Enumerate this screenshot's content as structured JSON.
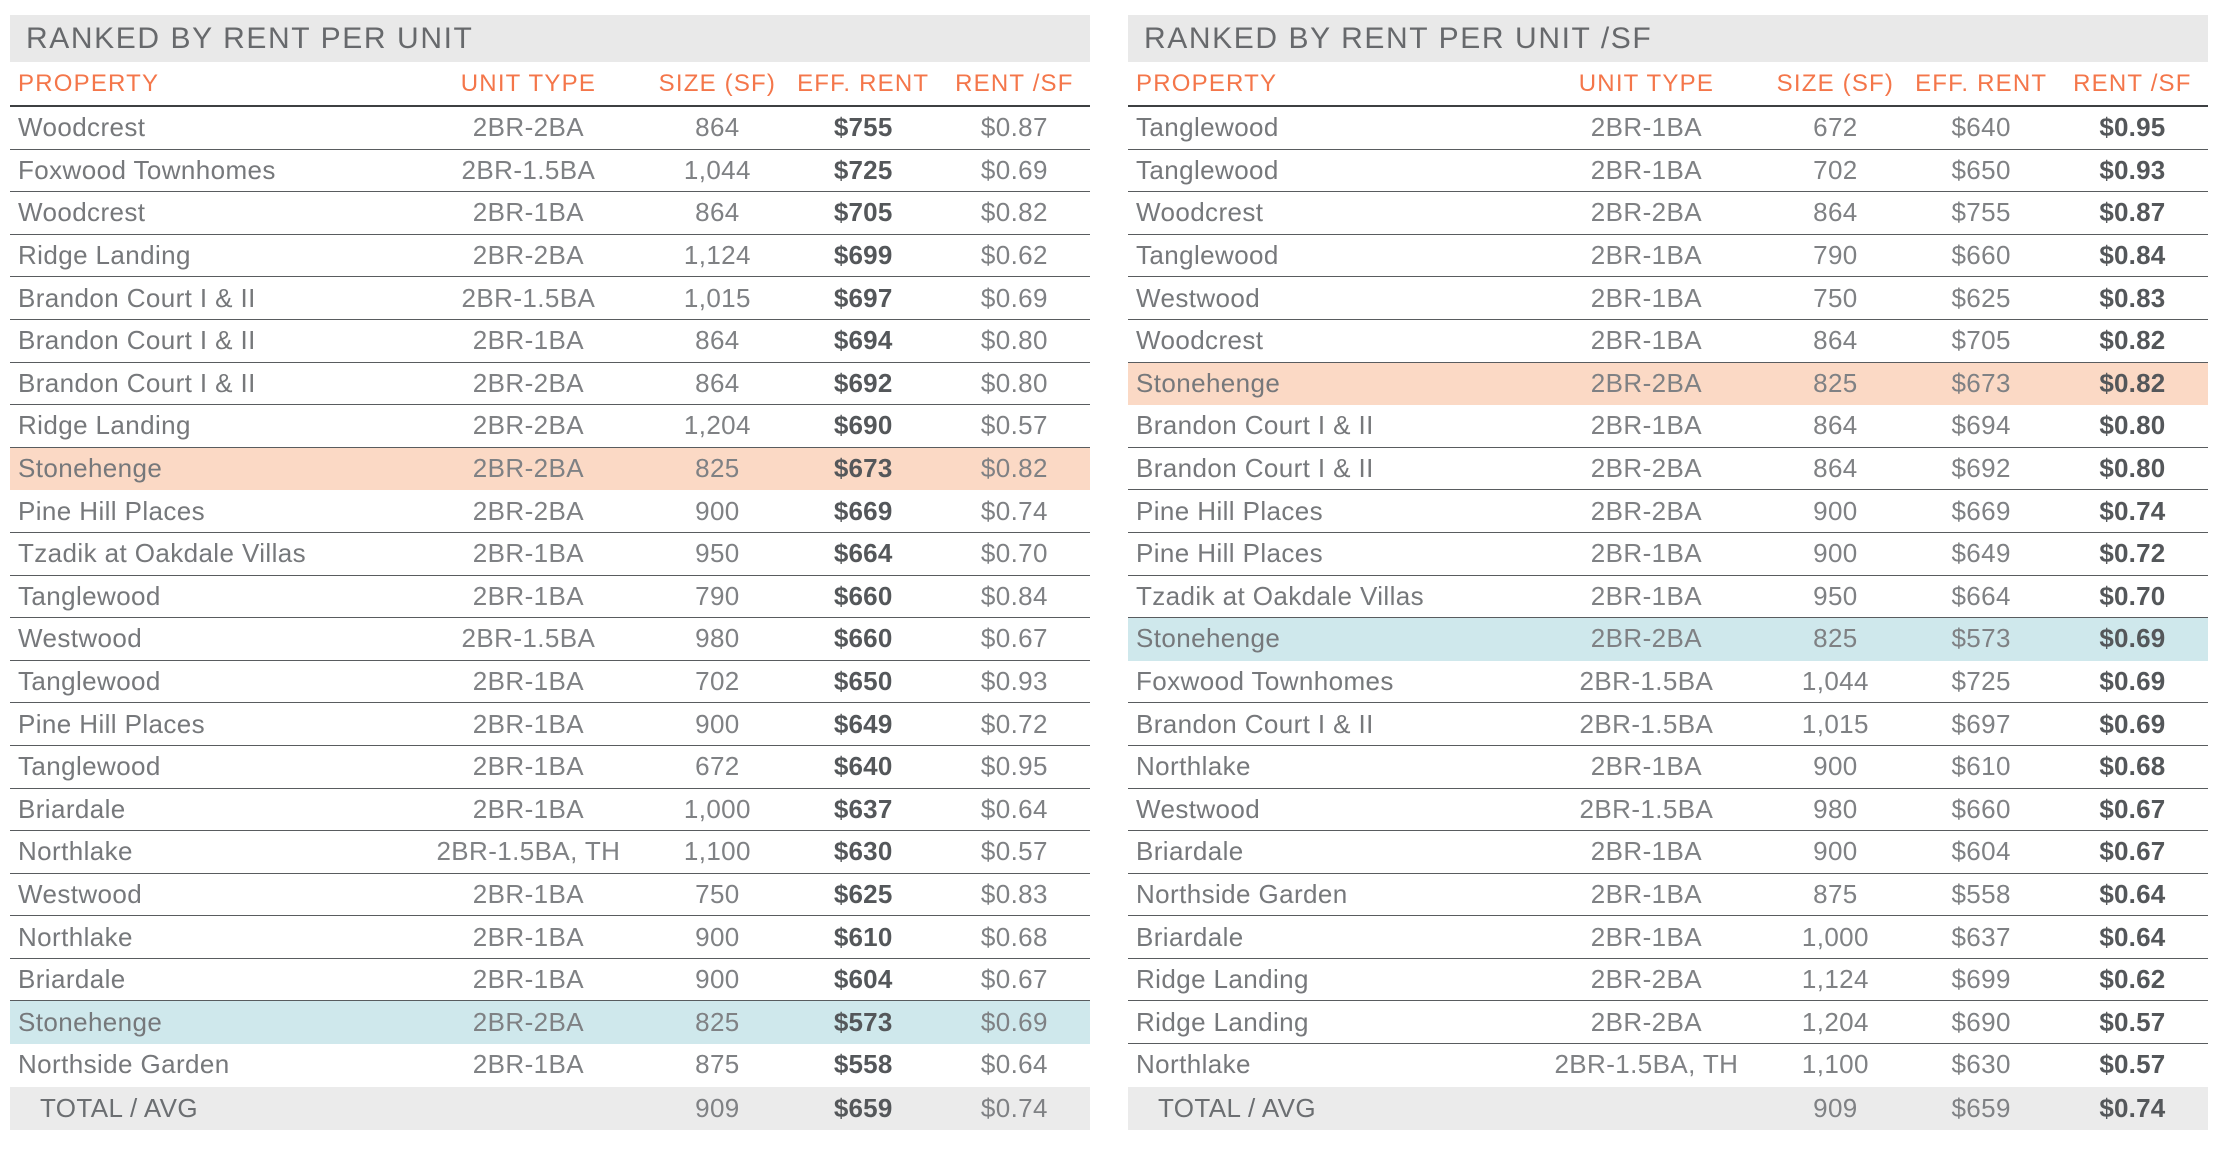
{
  "colors": {
    "accent_orange": "#F4764A",
    "highlight_salmon": "#FBD9C5",
    "highlight_blue": "#CFE8EC",
    "title_bar_bg": "#E9E9E9",
    "total_row_bg": "#EBEBEB"
  },
  "tables": [
    {
      "title": "RANKED BY RENT PER UNIT",
      "bold_column": "eff_rent",
      "columns": [
        "PROPERTY",
        "UNIT TYPE",
        "SIZE (SF)",
        "EFF. RENT",
        "RENT /SF"
      ],
      "rows": [
        {
          "property": "Woodcrest",
          "unit_type": "2BR-2BA",
          "size": "864",
          "eff_rent": "$755",
          "rent_sf": "$0.87",
          "highlight": ""
        },
        {
          "property": "Foxwood Townhomes",
          "unit_type": "2BR-1.5BA",
          "size": "1,044",
          "eff_rent": "$725",
          "rent_sf": "$0.69",
          "highlight": ""
        },
        {
          "property": "Woodcrest",
          "unit_type": "2BR-1BA",
          "size": "864",
          "eff_rent": "$705",
          "rent_sf": "$0.82",
          "highlight": ""
        },
        {
          "property": "Ridge Landing",
          "unit_type": "2BR-2BA",
          "size": "1,124",
          "eff_rent": "$699",
          "rent_sf": "$0.62",
          "highlight": ""
        },
        {
          "property": "Brandon Court I & II",
          "unit_type": "2BR-1.5BA",
          "size": "1,015",
          "eff_rent": "$697",
          "rent_sf": "$0.69",
          "highlight": ""
        },
        {
          "property": "Brandon Court I & II",
          "unit_type": "2BR-1BA",
          "size": "864",
          "eff_rent": "$694",
          "rent_sf": "$0.80",
          "highlight": ""
        },
        {
          "property": "Brandon Court I & II",
          "unit_type": "2BR-2BA",
          "size": "864",
          "eff_rent": "$692",
          "rent_sf": "$0.80",
          "highlight": ""
        },
        {
          "property": "Ridge Landing",
          "unit_type": "2BR-2BA",
          "size": "1,204",
          "eff_rent": "$690",
          "rent_sf": "$0.57",
          "highlight": ""
        },
        {
          "property": "Stonehenge",
          "unit_type": "2BR-2BA",
          "size": "825",
          "eff_rent": "$673",
          "rent_sf": "$0.82",
          "highlight": "salmon"
        },
        {
          "property": "Pine Hill Places",
          "unit_type": "2BR-2BA",
          "size": "900",
          "eff_rent": "$669",
          "rent_sf": "$0.74",
          "highlight": ""
        },
        {
          "property": "Tzadik at Oakdale Villas",
          "unit_type": "2BR-1BA",
          "size": "950",
          "eff_rent": "$664",
          "rent_sf": "$0.70",
          "highlight": ""
        },
        {
          "property": "Tanglewood",
          "unit_type": "2BR-1BA",
          "size": "790",
          "eff_rent": "$660",
          "rent_sf": "$0.84",
          "highlight": ""
        },
        {
          "property": "Westwood",
          "unit_type": "2BR-1.5BA",
          "size": "980",
          "eff_rent": "$660",
          "rent_sf": "$0.67",
          "highlight": ""
        },
        {
          "property": "Tanglewood",
          "unit_type": "2BR-1BA",
          "size": "702",
          "eff_rent": "$650",
          "rent_sf": "$0.93",
          "highlight": ""
        },
        {
          "property": "Pine Hill Places",
          "unit_type": "2BR-1BA",
          "size": "900",
          "eff_rent": "$649",
          "rent_sf": "$0.72",
          "highlight": ""
        },
        {
          "property": "Tanglewood",
          "unit_type": "2BR-1BA",
          "size": "672",
          "eff_rent": "$640",
          "rent_sf": "$0.95",
          "highlight": ""
        },
        {
          "property": "Briardale",
          "unit_type": "2BR-1BA",
          "size": "1,000",
          "eff_rent": "$637",
          "rent_sf": "$0.64",
          "highlight": ""
        },
        {
          "property": "Northlake",
          "unit_type": "2BR-1.5BA, TH",
          "size": "1,100",
          "eff_rent": "$630",
          "rent_sf": "$0.57",
          "highlight": ""
        },
        {
          "property": "Westwood",
          "unit_type": "2BR-1BA",
          "size": "750",
          "eff_rent": "$625",
          "rent_sf": "$0.83",
          "highlight": ""
        },
        {
          "property": "Northlake",
          "unit_type": "2BR-1BA",
          "size": "900",
          "eff_rent": "$610",
          "rent_sf": "$0.68",
          "highlight": ""
        },
        {
          "property": "Briardale",
          "unit_type": "2BR-1BA",
          "size": "900",
          "eff_rent": "$604",
          "rent_sf": "$0.67",
          "highlight": ""
        },
        {
          "property": "Stonehenge",
          "unit_type": "2BR-2BA",
          "size": "825",
          "eff_rent": "$573",
          "rent_sf": "$0.69",
          "highlight": "blue"
        },
        {
          "property": "Northside Garden",
          "unit_type": "2BR-1BA",
          "size": "875",
          "eff_rent": "$558",
          "rent_sf": "$0.64",
          "highlight": ""
        }
      ],
      "total": {
        "label": "TOTAL / AVG",
        "unit_type": "",
        "size": "909",
        "eff_rent": "$659",
        "rent_sf": "$0.74"
      }
    },
    {
      "title": "RANKED BY RENT PER UNIT /SF",
      "bold_column": "rent_sf",
      "columns": [
        "PROPERTY",
        "UNIT TYPE",
        "SIZE (SF)",
        "EFF. RENT",
        "RENT /SF"
      ],
      "rows": [
        {
          "property": "Tanglewood",
          "unit_type": "2BR-1BA",
          "size": "672",
          "eff_rent": "$640",
          "rent_sf": "$0.95",
          "highlight": ""
        },
        {
          "property": "Tanglewood",
          "unit_type": "2BR-1BA",
          "size": "702",
          "eff_rent": "$650",
          "rent_sf": "$0.93",
          "highlight": ""
        },
        {
          "property": "Woodcrest",
          "unit_type": "2BR-2BA",
          "size": "864",
          "eff_rent": "$755",
          "rent_sf": "$0.87",
          "highlight": ""
        },
        {
          "property": "Tanglewood",
          "unit_type": "2BR-1BA",
          "size": "790",
          "eff_rent": "$660",
          "rent_sf": "$0.84",
          "highlight": ""
        },
        {
          "property": "Westwood",
          "unit_type": "2BR-1BA",
          "size": "750",
          "eff_rent": "$625",
          "rent_sf": "$0.83",
          "highlight": ""
        },
        {
          "property": "Woodcrest",
          "unit_type": "2BR-1BA",
          "size": "864",
          "eff_rent": "$705",
          "rent_sf": "$0.82",
          "highlight": ""
        },
        {
          "property": "Stonehenge",
          "unit_type": "2BR-2BA",
          "size": "825",
          "eff_rent": "$673",
          "rent_sf": "$0.82",
          "highlight": "salmon"
        },
        {
          "property": "Brandon Court I & II",
          "unit_type": "2BR-1BA",
          "size": "864",
          "eff_rent": "$694",
          "rent_sf": "$0.80",
          "highlight": ""
        },
        {
          "property": "Brandon Court I & II",
          "unit_type": "2BR-2BA",
          "size": "864",
          "eff_rent": "$692",
          "rent_sf": "$0.80",
          "highlight": ""
        },
        {
          "property": "Pine Hill Places",
          "unit_type": "2BR-2BA",
          "size": "900",
          "eff_rent": "$669",
          "rent_sf": "$0.74",
          "highlight": ""
        },
        {
          "property": "Pine Hill Places",
          "unit_type": "2BR-1BA",
          "size": "900",
          "eff_rent": "$649",
          "rent_sf": "$0.72",
          "highlight": ""
        },
        {
          "property": "Tzadik at Oakdale Villas",
          "unit_type": "2BR-1BA",
          "size": "950",
          "eff_rent": "$664",
          "rent_sf": "$0.70",
          "highlight": ""
        },
        {
          "property": "Stonehenge",
          "unit_type": "2BR-2BA",
          "size": "825",
          "eff_rent": "$573",
          "rent_sf": "$0.69",
          "highlight": "blue"
        },
        {
          "property": "Foxwood Townhomes",
          "unit_type": "2BR-1.5BA",
          "size": "1,044",
          "eff_rent": "$725",
          "rent_sf": "$0.69",
          "highlight": ""
        },
        {
          "property": "Brandon Court I & II",
          "unit_type": "2BR-1.5BA",
          "size": "1,015",
          "eff_rent": "$697",
          "rent_sf": "$0.69",
          "highlight": ""
        },
        {
          "property": "Northlake",
          "unit_type": "2BR-1BA",
          "size": "900",
          "eff_rent": "$610",
          "rent_sf": "$0.68",
          "highlight": ""
        },
        {
          "property": "Westwood",
          "unit_type": "2BR-1.5BA",
          "size": "980",
          "eff_rent": "$660",
          "rent_sf": "$0.67",
          "highlight": ""
        },
        {
          "property": "Briardale",
          "unit_type": "2BR-1BA",
          "size": "900",
          "eff_rent": "$604",
          "rent_sf": "$0.67",
          "highlight": ""
        },
        {
          "property": "Northside Garden",
          "unit_type": "2BR-1BA",
          "size": "875",
          "eff_rent": "$558",
          "rent_sf": "$0.64",
          "highlight": ""
        },
        {
          "property": "Briardale",
          "unit_type": "2BR-1BA",
          "size": "1,000",
          "eff_rent": "$637",
          "rent_sf": "$0.64",
          "highlight": ""
        },
        {
          "property": "Ridge Landing",
          "unit_type": "2BR-2BA",
          "size": "1,124",
          "eff_rent": "$699",
          "rent_sf": "$0.62",
          "highlight": ""
        },
        {
          "property": "Ridge Landing",
          "unit_type": "2BR-2BA",
          "size": "1,204",
          "eff_rent": "$690",
          "rent_sf": "$0.57",
          "highlight": ""
        },
        {
          "property": "Northlake",
          "unit_type": "2BR-1.5BA, TH",
          "size": "1,100",
          "eff_rent": "$630",
          "rent_sf": "$0.57",
          "highlight": ""
        }
      ],
      "total": {
        "label": "TOTAL / AVG",
        "unit_type": "",
        "size": "909",
        "eff_rent": "$659",
        "rent_sf": "$0.74"
      }
    }
  ]
}
